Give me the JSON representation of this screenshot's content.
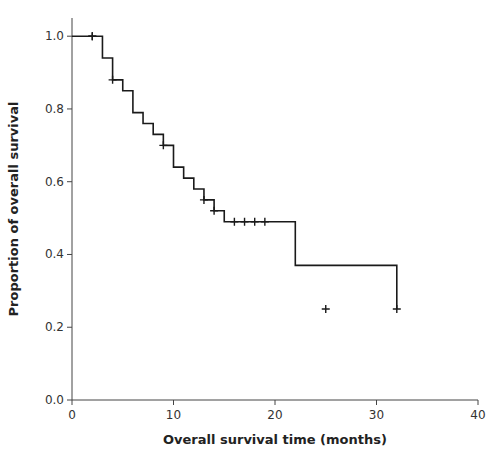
{
  "chart_data": {
    "type": "step",
    "title": "",
    "xlabel": "Overall survival time (months)",
    "ylabel": "Proportion of overall survival",
    "xlim": [
      0,
      40
    ],
    "ylim": [
      0.0,
      1.05
    ],
    "xticks": [
      0,
      10,
      20,
      30,
      40
    ],
    "yticks": [
      {
        "value": 0.0,
        "label": "0.0"
      },
      0.2,
      0.4,
      0.6,
      0.8,
      {
        "value": 1.0,
        "label": "1.0"
      }
    ],
    "grid": false,
    "series": [
      {
        "type": "step",
        "color": "#1a1a1a",
        "x": [
          0,
          2,
          3,
          4,
          5,
          6,
          7,
          8,
          9,
          10,
          11,
          12,
          13,
          14,
          15,
          16,
          21,
          22,
          32
        ],
        "values": [
          1.0,
          1.0,
          0.94,
          0.88,
          0.85,
          0.79,
          0.76,
          0.73,
          0.7,
          0.64,
          0.61,
          0.58,
          0.55,
          0.52,
          0.49,
          0.49,
          0.49,
          0.37,
          0.25
        ]
      },
      {
        "type": "scatter",
        "marker": "+",
        "color": "#1a1a1a",
        "x": [
          2,
          2,
          4,
          9,
          13,
          14,
          16,
          17,
          18,
          19,
          25,
          32
        ],
        "values": [
          1.0,
          1.0,
          0.88,
          0.7,
          0.55,
          0.52,
          0.49,
          0.49,
          0.49,
          0.49,
          0.25,
          0.25
        ]
      }
    ]
  }
}
